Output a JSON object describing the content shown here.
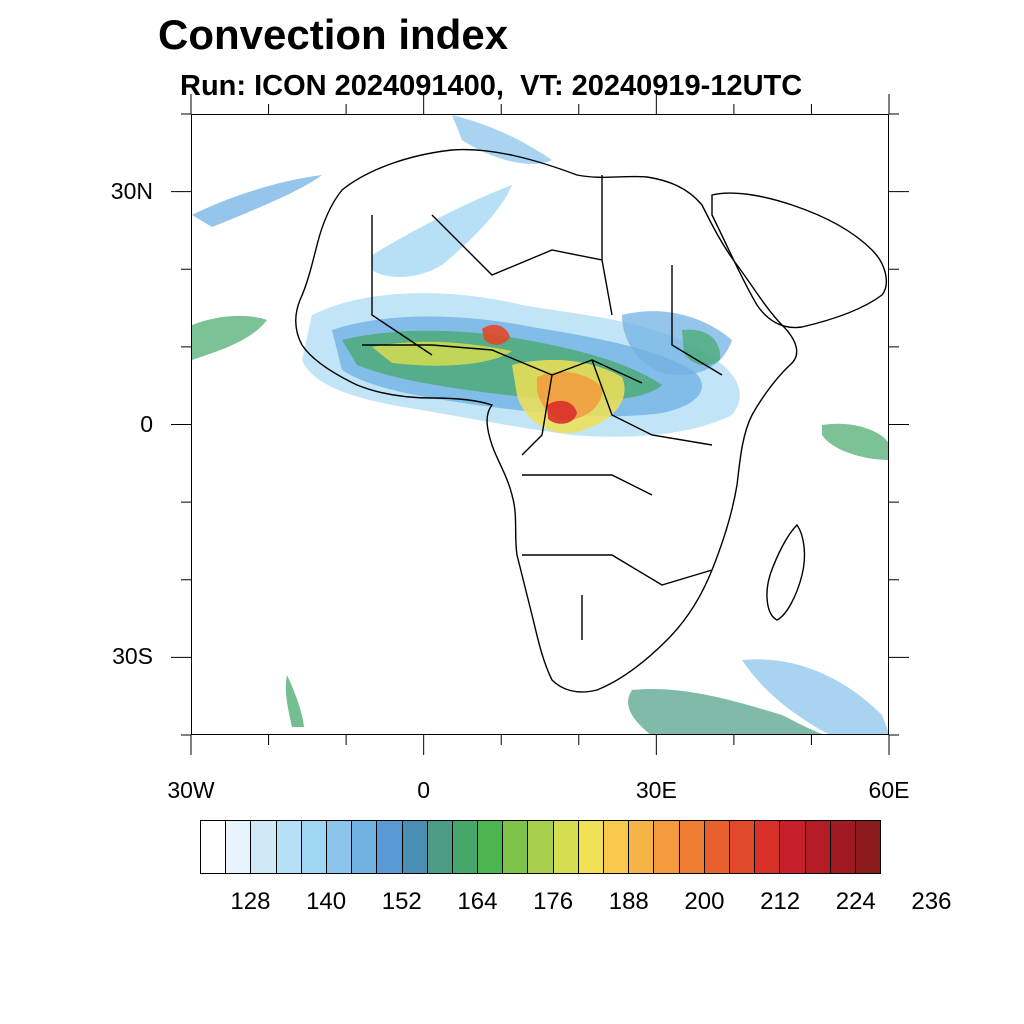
{
  "title": "Convection index",
  "subtitle": "Run: ICON 2024091400,  VT: 20240919-12UTC",
  "map": {
    "lon_range": [
      -30,
      60
    ],
    "lat_range": [
      -40,
      40
    ],
    "lat_labels": [
      {
        "lat": 30,
        "text": "30N"
      },
      {
        "lat": 0,
        "text": "0"
      },
      {
        "lat": -30,
        "text": "30S"
      }
    ],
    "lon_labels": [
      {
        "lon": -30,
        "text": "30W"
      },
      {
        "lon": 0,
        "text": "0"
      },
      {
        "lon": 30,
        "text": "30E"
      },
      {
        "lon": 60,
        "text": "60E"
      }
    ],
    "coastline_color": "#000000"
  },
  "colorbar": {
    "colors": [
      "#ffffff",
      "#e8f4fb",
      "#cfe9f7",
      "#b6e0f6",
      "#9fd6f4",
      "#8bc5ec",
      "#72b2e3",
      "#5a9ad4",
      "#4a8fb3",
      "#4a9c84",
      "#45a86a",
      "#4cb54f",
      "#7fc44a",
      "#a9cf4d",
      "#d5dd50",
      "#f0e055",
      "#f7c84c",
      "#f5b445",
      "#f39a3c",
      "#ee7d32",
      "#e8612c",
      "#e2482a",
      "#d93029",
      "#c8202a",
      "#b51c25",
      "#a11a21",
      "#8b1a1c"
    ],
    "labels": [
      "128",
      "140",
      "152",
      "164",
      "176",
      "188",
      "200",
      "212",
      "224",
      "236"
    ]
  }
}
